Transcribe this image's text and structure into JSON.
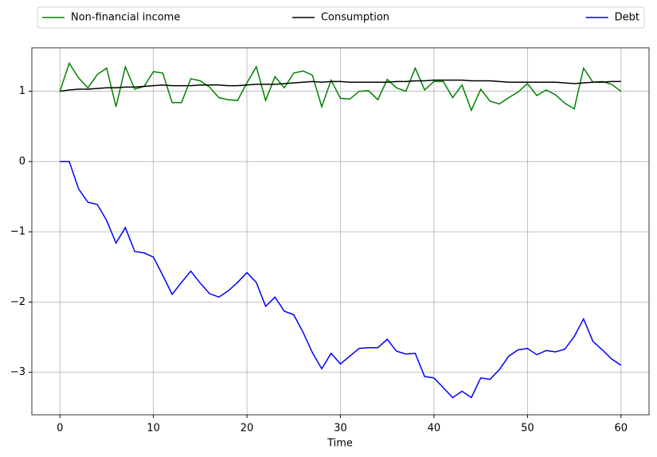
{
  "chart_data": {
    "type": "line",
    "x_label": "Time",
    "x": [
      0,
      1,
      2,
      3,
      4,
      5,
      6,
      7,
      8,
      9,
      10,
      11,
      12,
      13,
      14,
      15,
      16,
      17,
      18,
      19,
      20,
      21,
      22,
      23,
      24,
      25,
      26,
      27,
      28,
      29,
      30,
      31,
      32,
      33,
      34,
      35,
      36,
      37,
      38,
      39,
      40,
      41,
      42,
      43,
      44,
      45,
      46,
      47,
      48,
      49,
      50,
      51,
      52,
      53,
      54,
      55,
      56,
      57,
      58,
      59,
      60
    ],
    "series": [
      {
        "name": "Non-financial income",
        "color": "#008000",
        "values": [
          1.0,
          1.4,
          1.19,
          1.05,
          1.24,
          1.33,
          0.78,
          1.35,
          1.03,
          1.07,
          1.28,
          1.26,
          0.84,
          0.84,
          1.18,
          1.15,
          1.06,
          0.91,
          0.88,
          0.87,
          1.12,
          1.35,
          0.87,
          1.21,
          1.05,
          1.26,
          1.29,
          1.23,
          0.78,
          1.16,
          0.9,
          0.89,
          1.0,
          1.01,
          0.88,
          1.17,
          1.05,
          1.0,
          1.33,
          1.02,
          1.14,
          1.14,
          0.91,
          1.09,
          0.73,
          1.03,
          0.86,
          0.82,
          0.91,
          0.99,
          1.11,
          0.94,
          1.02,
          0.95,
          0.83,
          0.75,
          1.33,
          1.13,
          1.14,
          1.1,
          1.0
        ]
      },
      {
        "name": "Consumption",
        "color": "#000000",
        "values": [
          1.0,
          1.02,
          1.03,
          1.03,
          1.04,
          1.05,
          1.05,
          1.06,
          1.06,
          1.07,
          1.08,
          1.09,
          1.08,
          1.08,
          1.08,
          1.09,
          1.09,
          1.09,
          1.08,
          1.08,
          1.09,
          1.1,
          1.1,
          1.1,
          1.11,
          1.12,
          1.13,
          1.14,
          1.13,
          1.14,
          1.14,
          1.13,
          1.13,
          1.13,
          1.13,
          1.13,
          1.14,
          1.14,
          1.15,
          1.15,
          1.16,
          1.16,
          1.16,
          1.16,
          1.15,
          1.15,
          1.15,
          1.14,
          1.13,
          1.13,
          1.13,
          1.13,
          1.13,
          1.13,
          1.12,
          1.11,
          1.12,
          1.13,
          1.13,
          1.14,
          1.14
        ]
      },
      {
        "name": "Debt",
        "color": "#0000ff",
        "values": [
          0,
          0,
          -0.39,
          -0.58,
          -0.61,
          -0.84,
          -1.16,
          -0.94,
          -1.28,
          -1.3,
          -1.36,
          -1.62,
          -1.89,
          -1.72,
          -1.56,
          -1.73,
          -1.88,
          -1.93,
          -1.84,
          -1.72,
          -1.58,
          -1.72,
          -2.06,
          -1.93,
          -2.13,
          -2.18,
          -2.43,
          -2.72,
          -2.95,
          -2.73,
          -2.88,
          -2.77,
          -2.66,
          -2.65,
          -2.65,
          -2.53,
          -2.7,
          -2.74,
          -2.73,
          -3.06,
          -3.08,
          -3.22,
          -3.36,
          -3.27,
          -3.36,
          -3.08,
          -3.1,
          -2.96,
          -2.77,
          -2.68,
          -2.66,
          -2.75,
          -2.69,
          -2.71,
          -2.67,
          -2.49,
          -2.24,
          -2.56,
          -2.68,
          -2.81,
          -2.9
        ]
      }
    ],
    "xlim": [
      -3,
      63
    ],
    "xticks": [
      0,
      10,
      20,
      30,
      40,
      50,
      60
    ],
    "ylim": [
      -3.605,
      1.62
    ],
    "yticks": [
      {
        "value": -3,
        "label": "−3"
      },
      {
        "value": -2,
        "label": "−2"
      },
      {
        "value": -1,
        "label": "−1"
      },
      0,
      1
    ],
    "grid": true,
    "legend": "top"
  }
}
